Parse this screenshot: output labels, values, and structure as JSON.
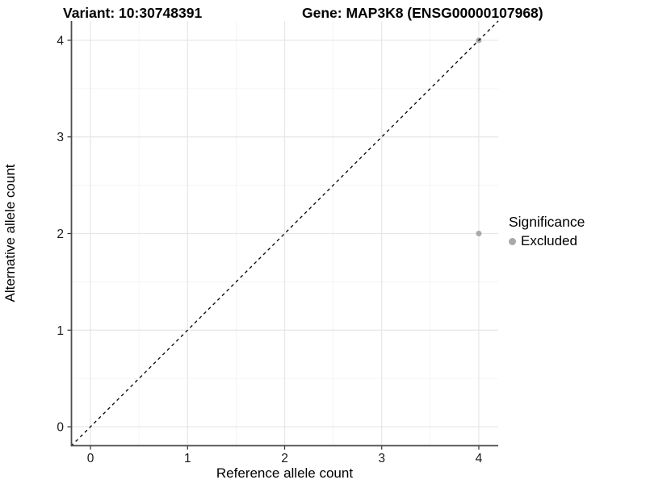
{
  "header": {
    "variant_title": "Variant: 10:30748391",
    "gene_title": "Gene: MAP3K8 (ENSG00000107968)"
  },
  "axes": {
    "x_label": "Reference allele count",
    "y_label": "Alternative allele count"
  },
  "legend": {
    "title": "Significance",
    "position": "right",
    "entries": [
      {
        "label": "Excluded",
        "color": "#a9a9a9"
      }
    ]
  },
  "chart_data": {
    "type": "scatter",
    "title": "Variant: 10:30748391   Gene: MAP3K8 (ENSG00000107968)",
    "xlabel": "Reference allele count",
    "ylabel": "Alternative allele count",
    "xlim": [
      -0.2,
      4.2
    ],
    "ylim": [
      -0.2,
      4.2
    ],
    "x_ticks": [
      0,
      1,
      2,
      3,
      4
    ],
    "y_ticks": [
      0,
      1,
      2,
      3,
      4
    ],
    "x_minor_ticks": [
      0.5,
      1.5,
      2.5,
      3.5
    ],
    "y_minor_ticks": [
      0.5,
      1.5,
      2.5,
      3.5
    ],
    "grid": "major+minor",
    "legend_position": "right",
    "series": [
      {
        "name": "Excluded",
        "color": "#a9a9a9",
        "point_radius": 3.5,
        "points": [
          [
            4,
            2
          ],
          [
            4,
            4
          ]
        ]
      }
    ],
    "reference_line": {
      "slope": 1,
      "intercept": 0,
      "linetype": "dashed",
      "color": "#000000"
    }
  },
  "style_colors": {
    "panel_background": "#ffffff",
    "grid_major": "#e6e6e6",
    "grid_minor": "#f1f1f1",
    "axis_line": "#4d4d4d",
    "tick_mark": "#333333",
    "tick_label": "#1a1a1a"
  }
}
